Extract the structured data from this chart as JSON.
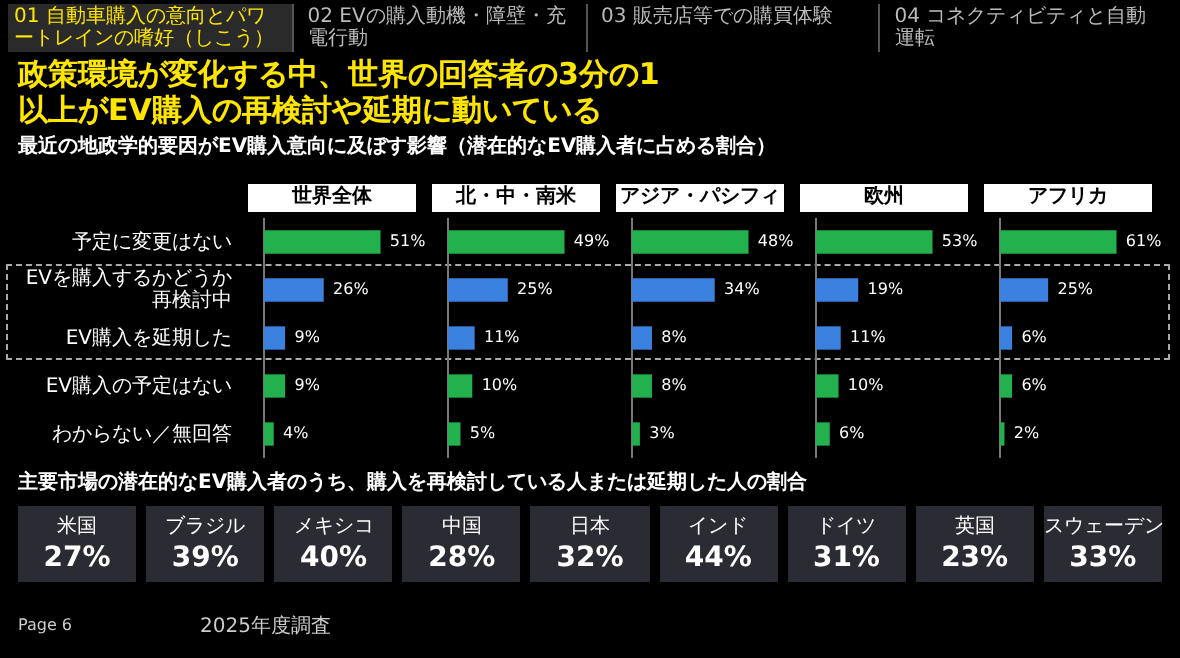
{
  "chart_data": [
    {
      "type": "bar",
      "orientation": "horizontal",
      "title": "世界全体",
      "tick_labels": "y",
      "annotations": [
        "01 自動車購入の意向とパワートレインの嗜好（しこう）",
        "02 EVの購入動機・障壁・充電行動",
        "03 販売店等での購買体験",
        "04 コネクティビティと自動運転",
        "政策環境が変化する中、世界の回答者の3分の1以上がEV購入の再検討や延期に動いている",
        "最近の地政学的要因がEV購入意向に及ぼす影響（潜在的なEV購入者に占める割合）",
        "Page 6",
        "2025年度調査"
      ],
      "categories": [
        "予定に変更はない",
        "EVを購入するかどうか再検討中",
        "EV購入を延期した",
        "EV購入の予定はない",
        "わからない／無回答"
      ],
      "values": [
        51,
        26,
        9,
        9,
        4
      ],
      "value_labels": [
        "51%",
        "26%",
        "9%",
        "9%",
        "4%"
      ],
      "colors": [
        "#22b14c",
        "#3b82e0",
        "#3b82e0",
        "#22b14c",
        "#22b14c"
      ]
    },
    {
      "type": "bar",
      "orientation": "horizontal",
      "title": "北・中・南米",
      "tick_labels": false,
      "categories": [
        null,
        null,
        null,
        null,
        null
      ],
      "values": [
        49,
        25,
        11,
        10,
        5
      ],
      "value_labels": [
        "49%",
        "25%",
        "11%",
        "10%",
        "5%"
      ],
      "colors": [
        "#22b14c",
        "#3b82e0",
        "#3b82e0",
        "#22b14c",
        "#22b14c"
      ]
    },
    {
      "type": "bar",
      "orientation": "horizontal",
      "title": "アジア・パシフィック",
      "tick_labels": false,
      "categories": [
        null,
        null,
        null,
        null,
        null
      ],
      "values": [
        48,
        34,
        8,
        8,
        3
      ],
      "value_labels": [
        "48%",
        "34%",
        "8%",
        "8%",
        "3%"
      ],
      "colors": [
        "#22b14c",
        "#3b82e0",
        "#3b82e0",
        "#22b14c",
        "#22b14c"
      ]
    },
    {
      "type": "bar",
      "orientation": "horizontal",
      "title": "欧州",
      "tick_labels": false,
      "categories": [
        null,
        null,
        null,
        null,
        null
      ],
      "values": [
        53,
        19,
        11,
        10,
        6
      ],
      "value_labels": [
        "53%",
        "19%",
        "11%",
        "10%",
        "6%"
      ],
      "colors": [
        "#22b14c",
        "#3b82e0",
        "#3b82e0",
        "#22b14c",
        "#22b14c"
      ]
    },
    {
      "type": "bar",
      "orientation": "horizontal",
      "title": "アフリカ",
      "tick_labels": false,
      "categories": [
        null,
        null,
        null,
        null,
        null
      ],
      "values": [
        61,
        25,
        6,
        6,
        2
      ],
      "value_labels": [
        "61%",
        "25%",
        "6%",
        "6%",
        "2%"
      ],
      "colors": [
        "#22b14c",
        "#3b82e0",
        "#3b82e0",
        "#22b14c",
        "#22b14c"
      ]
    },
    {
      "type": "other",
      "title": "主要市場の潜在的なEV購入者のうち、購入を再検討している人または延期した人の割合",
      "categories": [
        "米国",
        "ブラジル",
        "メキシコ",
        "中国",
        "日本",
        "インド",
        "ドイツ",
        "英国",
        "スウェーデン"
      ],
      "value_labels": [
        "27%",
        "39%",
        "40%",
        "28%",
        "32%",
        "44%",
        "31%",
        "23%",
        "33%"
      ]
    }
  ]
}
